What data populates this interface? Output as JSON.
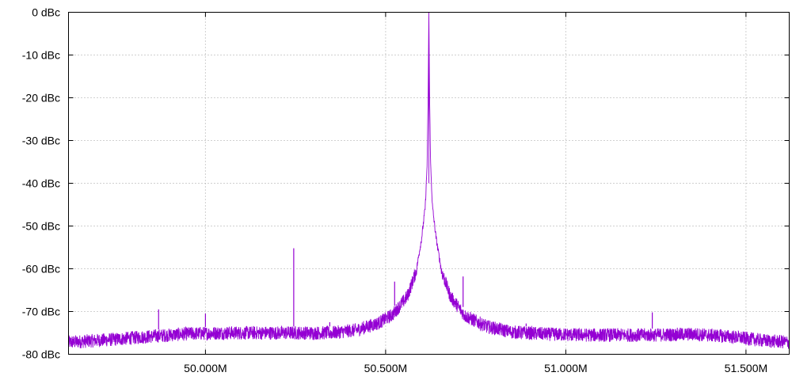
{
  "colors": {
    "trace": "#9400d3",
    "background": "#ffffff",
    "axis": "#000000",
    "grid": "#a0a0a0"
  },
  "chart_data": {
    "type": "line",
    "title": "",
    "xlabel": "",
    "ylabel": "",
    "grid": true,
    "legend": "none",
    "xlim": [
      49.62,
      51.62
    ],
    "ylim": [
      -80,
      0
    ],
    "x_ticks": [
      {
        "value": 50.0,
        "label": "50.000M"
      },
      {
        "value": 50.5,
        "label": "50.500M"
      },
      {
        "value": 51.0,
        "label": "51.000M"
      },
      {
        "value": 51.5,
        "label": "51.500M"
      }
    ],
    "y_ticks": [
      {
        "value": 0,
        "label": "0 dBc"
      },
      {
        "value": -10,
        "label": "-10 dBc"
      },
      {
        "value": -20,
        "label": "-20 dBc"
      },
      {
        "value": -30,
        "label": "-30 dBc"
      },
      {
        "value": -40,
        "label": "-40 dBc"
      },
      {
        "value": -50,
        "label": "-50 dBc"
      },
      {
        "value": -60,
        "label": "-60 dBc"
      },
      {
        "value": -70,
        "label": "-70 dBc"
      },
      {
        "value": -80,
        "label": "-80 dBc"
      }
    ],
    "series": [
      {
        "color": "#9400d3",
        "x": [
          49.62,
          49.75,
          49.85,
          49.95,
          50.05,
          50.15,
          50.25,
          50.35,
          50.42,
          50.48,
          50.52,
          50.56,
          50.585,
          50.6,
          50.61,
          50.615,
          50.618,
          50.62,
          50.622,
          50.625,
          50.63,
          50.64,
          50.655,
          50.68,
          50.72,
          50.78,
          50.85,
          50.95,
          51.05,
          51.15,
          51.25,
          51.35,
          51.45,
          51.55,
          51.62
        ],
        "noise_floor": [
          -77.2,
          -76.5,
          -75.8,
          -75.2,
          -75.0,
          -75.0,
          -75.0,
          -75.0,
          -74.3,
          -72.7,
          -70.7,
          -66.5,
          -60.5,
          -52.8,
          -45.5,
          -36.0,
          -20.0,
          0.0,
          -20.0,
          -36.0,
          -45.5,
          -52.8,
          -60.5,
          -66.5,
          -71.0,
          -73.5,
          -74.8,
          -75.3,
          -75.5,
          -75.5,
          -75.5,
          -75.3,
          -75.8,
          -76.8,
          -77.2
        ],
        "spurs": [
          {
            "x": 49.87,
            "y": -69.5
          },
          {
            "x": 50.0,
            "y": -70.5
          },
          {
            "x": 50.245,
            "y": -55.2
          },
          {
            "x": 50.345,
            "y": -72.5
          },
          {
            "x": 50.525,
            "y": -63.0
          },
          {
            "x": 50.715,
            "y": -61.8
          },
          {
            "x": 50.89,
            "y": -72.8
          },
          {
            "x": 51.24,
            "y": -70.2
          }
        ]
      }
    ]
  }
}
